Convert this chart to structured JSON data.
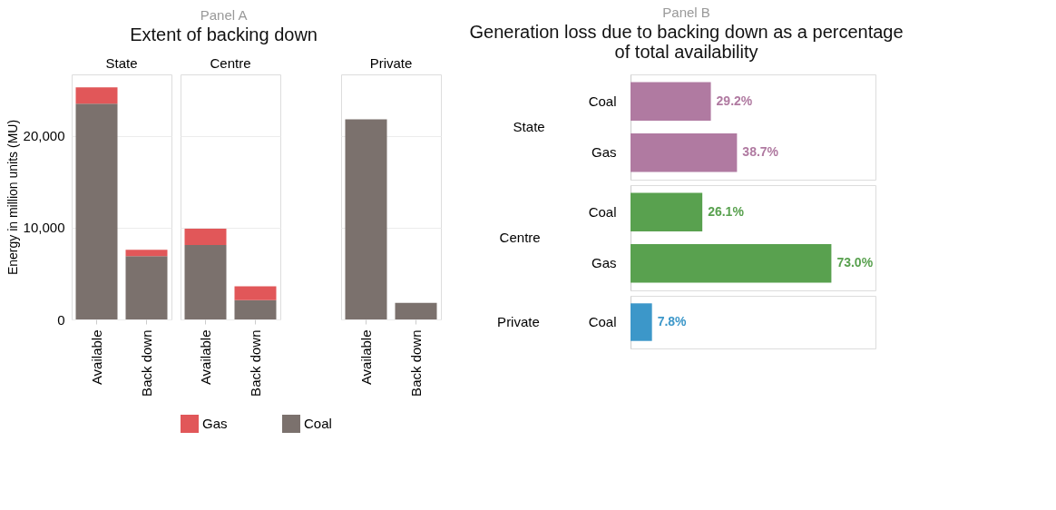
{
  "chart_data": [
    {
      "type": "bar",
      "title": "State",
      "ylabel": "Energy in million units (MU)",
      "annotations": [
        "Panel A",
        "Extent of backing down"
      ],
      "categories": [
        "Available",
        "Back down"
      ],
      "stacked": true,
      "ylim": [
        0,
        26700
      ],
      "yticks": [
        {
          "value": 0,
          "label": "0"
        },
        {
          "value": 10000,
          "label": "10,000"
        },
        {
          "value": 20000,
          "label": "20,000"
        }
      ],
      "grid": "y",
      "series": [
        {
          "color": "#7b716d",
          "values": [
            23500,
            6900
          ]
        },
        {
          "color": "#e15759",
          "values": [
            1800,
            700
          ]
        }
      ]
    },
    {
      "type": "bar",
      "title": "Centre",
      "categories": [
        "Available",
        "Back down"
      ],
      "stacked": true,
      "ylim": [
        0,
        26700
      ],
      "yticks": [
        0,
        10000,
        20000
      ],
      "grid": "y",
      "tick_labels": "x",
      "legend": "bottom",
      "series": [
        {
          "name": "Coal",
          "color": "#7b716d",
          "values": [
            8100,
            2100
          ]
        },
        {
          "name": "Gas",
          "color": "#e15759",
          "values": [
            1800,
            1500
          ]
        }
      ]
    },
    {
      "type": "bar",
      "title": "Private",
      "categories": [
        "Available",
        "Back down"
      ],
      "stacked": true,
      "ylim": [
        0,
        26700
      ],
      "yticks": [
        0,
        10000,
        20000
      ],
      "grid": "y",
      "tick_labels": "x",
      "series": [
        {
          "color": "#7b716d",
          "values": [
            21800,
            1800
          ]
        },
        {
          "color": "#e15759",
          "values": [
            null,
            null
          ]
        }
      ]
    },
    {
      "type": "bar",
      "orientation": "horizontal",
      "title": "State",
      "annotations": [
        "Panel B",
        "Generation loss due to backing down as a percentage of total availability"
      ],
      "categories": [
        "Coal",
        "Gas"
      ],
      "series": [
        {
          "color": "#b07aa1",
          "values": [
            29.2,
            38.7
          ],
          "value_labels": [
            "29.2%",
            "38.7%"
          ]
        }
      ]
    },
    {
      "type": "bar",
      "orientation": "horizontal",
      "title": "Centre",
      "categories": [
        "Coal",
        "Gas"
      ],
      "series": [
        {
          "color": "#59a14f",
          "values": [
            26.1,
            73.0
          ],
          "value_labels": [
            "26.1%",
            "73.0%"
          ]
        }
      ]
    },
    {
      "type": "bar",
      "orientation": "horizontal",
      "title": "Private",
      "categories": [
        "Coal"
      ],
      "series": [
        {
          "color": "#3c97c9",
          "values": [
            7.8
          ],
          "value_labels": [
            "7.8%"
          ]
        }
      ]
    }
  ]
}
